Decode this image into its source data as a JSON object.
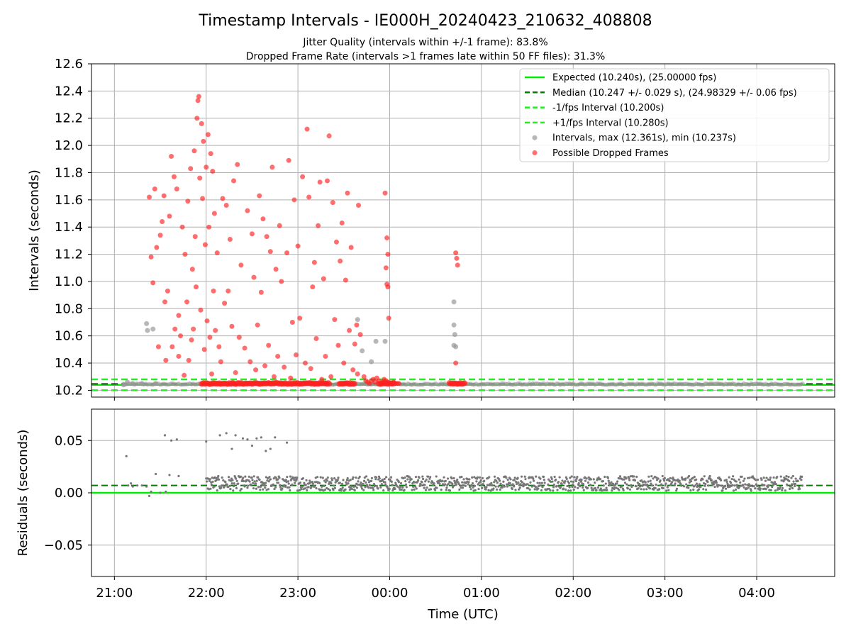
{
  "chart_data": [
    {
      "type": "scatter",
      "title": "Timestamp Intervals - IE000H_20240423_210632_408808",
      "subtitle_1": "Jitter Quality (intervals within +/-1 frame): 83.8%",
      "subtitle_2": "Dropped Frame Rate (intervals >1 frames late within 50 FF files): 31.3%",
      "ylabel": "Intervals (seconds)",
      "ylim": [
        10.15,
        12.6
      ],
      "xlim_hours": [
        -0.25,
        7.85
      ],
      "yticks": [
        10.2,
        10.4,
        10.6,
        10.8,
        11.0,
        11.2,
        11.4,
        11.6,
        11.8,
        12.0,
        12.2,
        12.4,
        12.6
      ],
      "ytick_labels": [
        "10.2",
        "10.4",
        "10.6",
        "10.8",
        "11.0",
        "11.2",
        "11.4",
        "11.6",
        "11.8",
        "12.0",
        "12.2",
        "12.4",
        "12.6"
      ],
      "grid": true,
      "legend_position": "top-right",
      "reference_lines": {
        "expected": 10.24,
        "median": 10.247,
        "minus_fps": 10.2,
        "plus_fps": 10.28
      },
      "legend": [
        {
          "label": "Expected (10.240s), (25.00000 fps)",
          "color": "#00ee00",
          "style": "solid"
        },
        {
          "label": "Median (10.247 +/- 0.029 s), (24.98329 +/- 0.06 fps)",
          "color": "#007f00",
          "style": "dashed"
        },
        {
          "label": "-1/fps Interval (10.200s)",
          "color": "#22ee22",
          "style": "dashed"
        },
        {
          "label": "+1/fps Interval (10.280s)",
          "color": "#22ee22",
          "style": "dashed"
        },
        {
          "label": "Intervals, max (12.361s), min (10.237s)",
          "color": "#999999",
          "style": "marker"
        },
        {
          "label": "Possible Dropped Frames",
          "color": "#ff3333",
          "style": "marker"
        }
      ],
      "series": [
        {
          "name": "Intervals (gray)",
          "note": "points as [hours after 21:00, interval s]",
          "points": [
            [
              0.1,
              10.24
            ],
            [
              0.14,
              10.26
            ],
            [
              0.2,
              10.25
            ],
            [
              0.3,
              10.25
            ],
            [
              0.35,
              10.69
            ],
            [
              0.36,
              10.64
            ],
            [
              0.42,
              10.65
            ],
            [
              0.45,
              10.25
            ],
            [
              2.65,
              10.72
            ],
            [
              2.7,
              10.49
            ],
            [
              2.8,
              10.41
            ],
            [
              2.85,
              10.56
            ],
            [
              2.95,
              10.56
            ],
            [
              3.7,
              10.85
            ],
            [
              3.7,
              10.68
            ],
            [
              3.71,
              10.61
            ],
            [
              3.7,
              10.53
            ],
            [
              3.72,
              10.52
            ]
          ],
          "baseline_band": {
            "from_hour": 0.1,
            "to_hour": 7.5,
            "value": 10.245
          }
        },
        {
          "name": "Possible Dropped Frames (red)",
          "points": [
            [
              0.38,
              11.62
            ],
            [
              0.4,
              11.18
            ],
            [
              0.42,
              10.99
            ],
            [
              0.44,
              11.68
            ],
            [
              0.46,
              11.25
            ],
            [
              0.48,
              10.52
            ],
            [
              0.5,
              11.34
            ],
            [
              0.52,
              11.44
            ],
            [
              0.54,
              11.63
            ],
            [
              0.55,
              10.85
            ],
            [
              0.56,
              10.42
            ],
            [
              0.58,
              10.93
            ],
            [
              0.6,
              11.48
            ],
            [
              0.62,
              11.92
            ],
            [
              0.63,
              10.52
            ],
            [
              0.65,
              11.77
            ],
            [
              0.66,
              10.65
            ],
            [
              0.68,
              11.68
            ],
            [
              0.7,
              10.75
            ],
            [
              0.7,
              10.45
            ],
            [
              0.72,
              10.6
            ],
            [
              0.74,
              11.4
            ],
            [
              0.76,
              10.31
            ],
            [
              0.77,
              11.2
            ],
            [
              0.79,
              10.85
            ],
            [
              0.8,
              11.59
            ],
            [
              0.81,
              10.42
            ],
            [
              0.83,
              11.83
            ],
            [
              0.84,
              10.57
            ],
            [
              0.85,
              11.09
            ],
            [
              0.86,
              10.65
            ],
            [
              0.87,
              11.96
            ],
            [
              0.88,
              11.33
            ],
            [
              0.89,
              10.96
            ],
            [
              0.9,
              12.2
            ],
            [
              0.91,
              12.33
            ],
            [
              0.92,
              12.36
            ],
            [
              0.93,
              11.76
            ],
            [
              0.94,
              10.79
            ],
            [
              0.95,
              12.16
            ],
            [
              0.96,
              11.61
            ],
            [
              0.97,
              12.03
            ],
            [
              0.98,
              10.5
            ],
            [
              0.99,
              11.27
            ],
            [
              1.0,
              11.84
            ],
            [
              1.01,
              10.71
            ],
            [
              1.02,
              12.08
            ],
            [
              1.03,
              11.4
            ],
            [
              1.04,
              10.59
            ],
            [
              1.05,
              11.94
            ],
            [
              1.06,
              10.32
            ],
            [
              1.07,
              11.81
            ],
            [
              1.08,
              10.93
            ],
            [
              1.09,
              11.5
            ],
            [
              1.1,
              10.64
            ],
            [
              1.12,
              11.21
            ],
            [
              1.14,
              10.52
            ],
            [
              1.16,
              10.41
            ],
            [
              1.18,
              11.61
            ],
            [
              1.2,
              10.84
            ],
            [
              1.22,
              11.56
            ],
            [
              1.24,
              10.93
            ],
            [
              1.26,
              11.31
            ],
            [
              1.28,
              10.67
            ],
            [
              1.3,
              11.74
            ],
            [
              1.32,
              10.33
            ],
            [
              1.34,
              11.86
            ],
            [
              1.36,
              10.59
            ],
            [
              1.38,
              11.12
            ],
            [
              1.42,
              10.51
            ],
            [
              1.45,
              11.52
            ],
            [
              1.48,
              10.41
            ],
            [
              1.5,
              11.35
            ],
            [
              1.52,
              11.03
            ],
            [
              1.54,
              10.35
            ],
            [
              1.56,
              10.68
            ],
            [
              1.58,
              11.63
            ],
            [
              1.6,
              10.92
            ],
            [
              1.62,
              11.46
            ],
            [
              1.64,
              10.38
            ],
            [
              1.66,
              11.33
            ],
            [
              1.68,
              10.53
            ],
            [
              1.7,
              11.22
            ],
            [
              1.72,
              11.84
            ],
            [
              1.74,
              10.3
            ],
            [
              1.76,
              11.09
            ],
            [
              1.78,
              10.45
            ],
            [
              1.8,
              11.41
            ],
            [
              1.82,
              11.0
            ],
            [
              1.85,
              10.37
            ],
            [
              1.88,
              11.21
            ],
            [
              1.9,
              11.89
            ],
            [
              1.92,
              10.29
            ],
            [
              1.94,
              10.7
            ],
            [
              1.96,
              11.6
            ],
            [
              1.98,
              10.46
            ],
            [
              2.0,
              11.26
            ],
            [
              2.02,
              10.73
            ],
            [
              2.05,
              11.77
            ],
            [
              2.08,
              10.4
            ],
            [
              2.1,
              12.12
            ],
            [
              2.12,
              11.62
            ],
            [
              2.14,
              10.36
            ],
            [
              2.16,
              10.96
            ],
            [
              2.18,
              11.14
            ],
            [
              2.2,
              10.58
            ],
            [
              2.22,
              11.41
            ],
            [
              2.24,
              11.73
            ],
            [
              2.26,
              10.28
            ],
            [
              2.28,
              11.02
            ],
            [
              2.3,
              10.45
            ],
            [
              2.32,
              11.74
            ],
            [
              2.34,
              12.07
            ],
            [
              2.36,
              10.3
            ],
            [
              2.38,
              11.58
            ],
            [
              2.4,
              10.72
            ],
            [
              2.42,
              11.29
            ],
            [
              2.44,
              10.53
            ],
            [
              2.46,
              11.15
            ],
            [
              2.48,
              11.43
            ],
            [
              2.5,
              10.4
            ],
            [
              2.52,
              11.01
            ],
            [
              2.54,
              11.65
            ],
            [
              2.56,
              10.64
            ],
            [
              2.58,
              11.25
            ],
            [
              2.6,
              10.35
            ],
            [
              2.62,
              10.54
            ],
            [
              2.64,
              10.68
            ],
            [
              2.65,
              10.32
            ],
            [
              2.66,
              11.56
            ],
            [
              2.68,
              10.61
            ],
            [
              2.72,
              10.3
            ],
            [
              2.74,
              10.27
            ],
            [
              2.76,
              10.26
            ],
            [
              2.78,
              10.25
            ],
            [
              2.8,
              10.27
            ],
            [
              2.82,
              10.28
            ],
            [
              2.84,
              10.26
            ],
            [
              2.86,
              10.29
            ],
            [
              2.88,
              10.27
            ],
            [
              2.9,
              10.25
            ],
            [
              2.92,
              10.26
            ],
            [
              2.94,
              10.28
            ],
            [
              2.96,
              10.27
            ],
            [
              2.98,
              10.26
            ],
            [
              3.0,
              10.25
            ],
            [
              3.02,
              10.25
            ],
            [
              3.04,
              10.26
            ],
            [
              3.06,
              10.25
            ],
            [
              3.08,
              10.25
            ],
            [
              3.1,
              10.25
            ],
            [
              2.95,
              11.65
            ],
            [
              2.97,
              11.32
            ],
            [
              2.98,
              11.2
            ],
            [
              2.96,
              11.1
            ],
            [
              2.97,
              10.98
            ],
            [
              2.98,
              10.96
            ],
            [
              2.99,
              10.73
            ],
            [
              3.72,
              11.21
            ],
            [
              3.73,
              11.17
            ],
            [
              3.74,
              11.12
            ],
            [
              3.72,
              10.4
            ]
          ],
          "dense_band": [
            {
              "from_hour": 0.95,
              "to_hour": 2.35,
              "value": 10.25
            },
            {
              "from_hour": 2.45,
              "to_hour": 2.62,
              "value": 10.25
            },
            {
              "from_hour": 2.88,
              "to_hour": 3.05,
              "value": 10.25
            },
            {
              "from_hour": 3.65,
              "to_hour": 3.82,
              "value": 10.25
            }
          ]
        }
      ]
    },
    {
      "type": "scatter",
      "ylabel": "Residuals (seconds)",
      "xlabel": "Time (UTC)",
      "ylim": [
        -0.08,
        0.08
      ],
      "yticks": [
        -0.05,
        0.0,
        0.05
      ],
      "ytick_labels": [
        "−0.05",
        "0.00",
        "0.05"
      ],
      "xticks_hours": [
        0,
        1,
        2,
        3,
        4,
        5,
        6,
        7
      ],
      "xtick_labels": [
        "21:00",
        "22:00",
        "23:00",
        "00:00",
        "01:00",
        "02:00",
        "03:00",
        "04:00"
      ],
      "reference_lines": {
        "expected": 0.0,
        "median": 0.007
      },
      "grid": true,
      "series": [
        {
          "name": "Residuals",
          "color": "#777777",
          "points": [
            [
              0.13,
              0.035
            ],
            [
              0.15,
              0.007
            ],
            [
              0.18,
              0.009
            ],
            [
              0.2,
              0.006
            ],
            [
              0.25,
              0.007
            ],
            [
              0.3,
              0.007
            ],
            [
              0.35,
              0.006
            ],
            [
              0.38,
              -0.003
            ],
            [
              0.45,
              0.018
            ],
            [
              0.55,
              0.055
            ],
            [
              0.6,
              0.017
            ],
            [
              0.62,
              0.05
            ],
            [
              0.68,
              0.051
            ],
            [
              0.7,
              0.016
            ],
            [
              1.0,
              0.049
            ],
            [
              1.15,
              0.055
            ],
            [
              1.22,
              0.057
            ],
            [
              1.28,
              0.042
            ],
            [
              1.32,
              0.055
            ],
            [
              1.4,
              0.052
            ],
            [
              1.45,
              0.051
            ],
            [
              1.5,
              0.045
            ],
            [
              1.55,
              0.052
            ],
            [
              1.6,
              0.053
            ],
            [
              1.65,
              0.04
            ],
            [
              1.7,
              0.042
            ],
            [
              1.75,
              0.053
            ],
            [
              1.88,
              0.048
            ],
            [
              0.4,
              0.001
            ],
            [
              0.5,
              0.0
            ],
            [
              0.56,
              0.001
            ]
          ],
          "dense_band": {
            "from_hour": 1.0,
            "to_hour": 7.5,
            "low": 0.002,
            "high": 0.016
          }
        }
      ]
    }
  ]
}
